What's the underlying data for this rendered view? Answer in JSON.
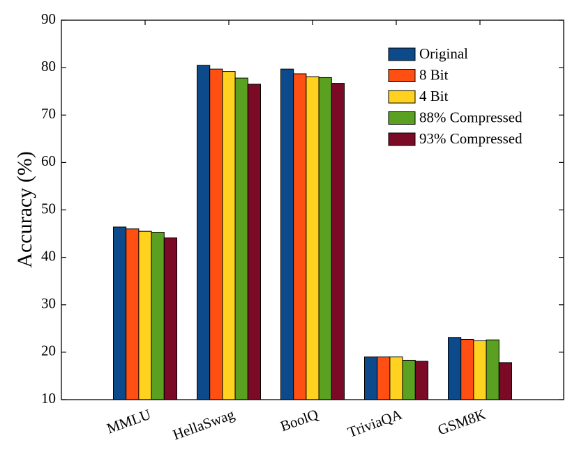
{
  "chart_data": {
    "type": "bar",
    "y_label": "Accuracy (%)",
    "categories": [
      "MMLU",
      "HellaSwag",
      "BoolQ",
      "TriviaQA",
      "GSM8K"
    ],
    "series": [
      {
        "name": "Original",
        "color": "#0c4a8c",
        "values": [
          46.4,
          80.5,
          79.7,
          19.0,
          23.1
        ]
      },
      {
        "name": "8 Bit",
        "color": "#ff4f13",
        "values": [
          46.0,
          79.7,
          78.7,
          19.0,
          22.7
        ]
      },
      {
        "name": "4 Bit",
        "color": "#ffd21f",
        "values": [
          45.5,
          79.2,
          78.1,
          19.0,
          22.4
        ]
      },
      {
        "name": "88% Compressed",
        "color": "#5aa021",
        "values": [
          45.3,
          77.8,
          77.9,
          18.3,
          22.6
        ]
      },
      {
        "name": "93% Compressed",
        "color": "#7a0a26",
        "values": [
          44.1,
          76.5,
          76.7,
          18.1,
          17.8
        ]
      }
    ],
    "ylim": [
      10,
      90
    ],
    "yticks": [
      10,
      20,
      30,
      40,
      50,
      60,
      70,
      80,
      90
    ],
    "legend": "upper right"
  }
}
